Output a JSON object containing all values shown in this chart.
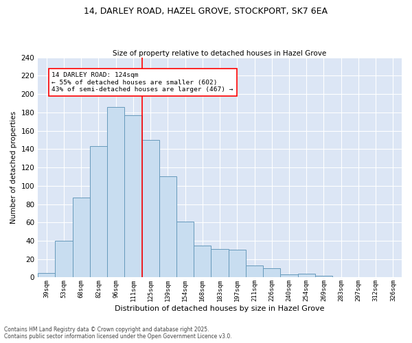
{
  "title_line1": "14, DARLEY ROAD, HAZEL GROVE, STOCKPORT, SK7 6EA",
  "title_line2": "Size of property relative to detached houses in Hazel Grove",
  "xlabel": "Distribution of detached houses by size in Hazel Grove",
  "ylabel": "Number of detached properties",
  "categories": [
    "39sqm",
    "53sqm",
    "68sqm",
    "82sqm",
    "96sqm",
    "111sqm",
    "125sqm",
    "139sqm",
    "154sqm",
    "168sqm",
    "183sqm",
    "197sqm",
    "211sqm",
    "226sqm",
    "240sqm",
    "254sqm",
    "269sqm",
    "283sqm",
    "297sqm",
    "312sqm",
    "326sqm"
  ],
  "bar_values": [
    5,
    40,
    87,
    143,
    186,
    177,
    150,
    110,
    61,
    35,
    31,
    30,
    13,
    10,
    3,
    4,
    2,
    0,
    0,
    0,
    0
  ],
  "bar_color": "#c8ddf0",
  "bar_edge_color": "#6699bb",
  "vline_x": 6,
  "vline_color": "red",
  "annotation_text": "14 DARLEY ROAD: 124sqm\n← 55% of detached houses are smaller (602)\n43% of semi-detached houses are larger (467) →",
  "annotation_box_color": "white",
  "annotation_box_edge_color": "red",
  "ylim": [
    0,
    240
  ],
  "yticks": [
    0,
    20,
    40,
    60,
    80,
    100,
    120,
    140,
    160,
    180,
    200,
    220,
    240
  ],
  "bg_color": "#dce6f5",
  "grid_color": "white",
  "footer_line1": "Contains HM Land Registry data © Crown copyright and database right 2025.",
  "footer_line2": "Contains public sector information licensed under the Open Government Licence v3.0."
}
